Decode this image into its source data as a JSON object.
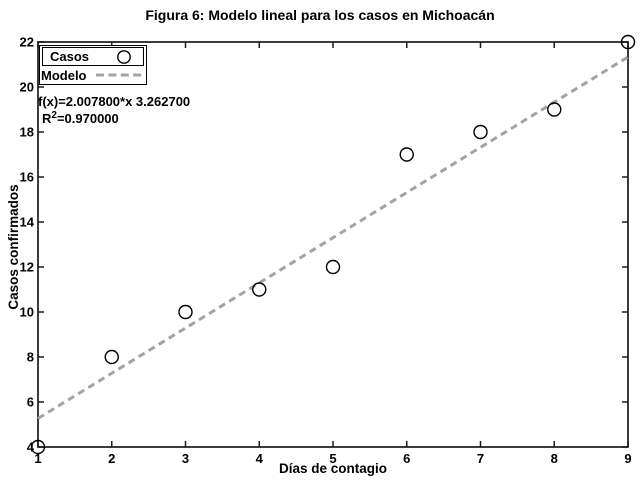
{
  "chart_data": {
    "type": "scatter",
    "title": "Figura 6: Modelo lineal para los casos en Michoacán",
    "xlabel": "Días de contagio",
    "ylabel": "Casos confirmados",
    "xlim": [
      1,
      9
    ],
    "ylim": [
      4,
      22
    ],
    "xticks": [
      1,
      2,
      3,
      4,
      5,
      6,
      7,
      8,
      9
    ],
    "yticks": [
      4,
      6,
      8,
      10,
      12,
      14,
      16,
      18,
      20,
      22
    ],
    "grid": false,
    "legend_position": "top-left",
    "x": [
      1,
      2,
      3,
      4,
      5,
      6,
      7,
      8,
      9
    ],
    "series": [
      {
        "name": "Casos",
        "type": "scatter",
        "marker": "open-circle",
        "color": "#000000",
        "values": [
          4,
          8,
          10,
          11,
          12,
          17,
          18,
          19,
          22
        ]
      },
      {
        "name": "Modelo",
        "type": "line",
        "line_style": "dashed",
        "color": "#a3a3a3",
        "slope": 2.0078,
        "intercept": 3.2627,
        "equation": "f(x)=2.007800*x 3.262700"
      }
    ],
    "annotation": {
      "fit_label": "f(x)=2.007800*x 3.262700",
      "r2_base": "R",
      "r2_sup": "2",
      "r2_value": "=0.970000"
    },
    "r_squared": 0.97,
    "axis_color": "#1a1a1a"
  }
}
